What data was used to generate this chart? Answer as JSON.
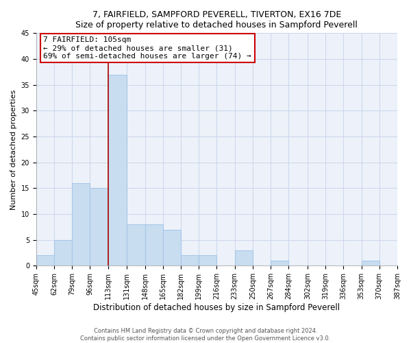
{
  "title": "7, FAIRFIELD, SAMPFORD PEVERELL, TIVERTON, EX16 7DE",
  "subtitle": "Size of property relative to detached houses in Sampford Peverell",
  "xlabel": "Distribution of detached houses by size in Sampford Peverell",
  "ylabel": "Number of detached properties",
  "bar_color": "#c8ddf0",
  "bar_edge_color": "#a8c8e8",
  "annotation_line1": "7 FAIRFIELD: 105sqm",
  "annotation_line2": "← 29% of detached houses are smaller (31)",
  "annotation_line3": "69% of semi-detached houses are larger (74) →",
  "annotation_box_color": "white",
  "annotation_box_edge_color": "#cc0000",
  "vline_x": 113,
  "vline_color": "#aa0000",
  "bins": [
    45,
    62,
    79,
    96,
    113,
    131,
    148,
    165,
    182,
    199,
    216,
    233,
    250,
    267,
    284,
    302,
    319,
    336,
    353,
    370,
    387
  ],
  "counts": [
    2,
    5,
    16,
    15,
    37,
    8,
    8,
    7,
    2,
    2,
    0,
    3,
    0,
    1,
    0,
    0,
    0,
    0,
    1,
    0
  ],
  "ylim": [
    0,
    45
  ],
  "yticks": [
    0,
    5,
    10,
    15,
    20,
    25,
    30,
    35,
    40,
    45
  ],
  "footer_line1": "Contains HM Land Registry data © Crown copyright and database right 2024.",
  "footer_line2": "Contains public sector information licensed under the Open Government Licence v3.0.",
  "grid_color": "#ccd8ec",
  "background_color": "#edf2fa",
  "title_fontsize": 9,
  "subtitle_fontsize": 8.5,
  "xlabel_fontsize": 8.5,
  "ylabel_fontsize": 8,
  "tick_fontsize": 7,
  "annotation_fontsize": 8,
  "footer_fontsize": 6
}
